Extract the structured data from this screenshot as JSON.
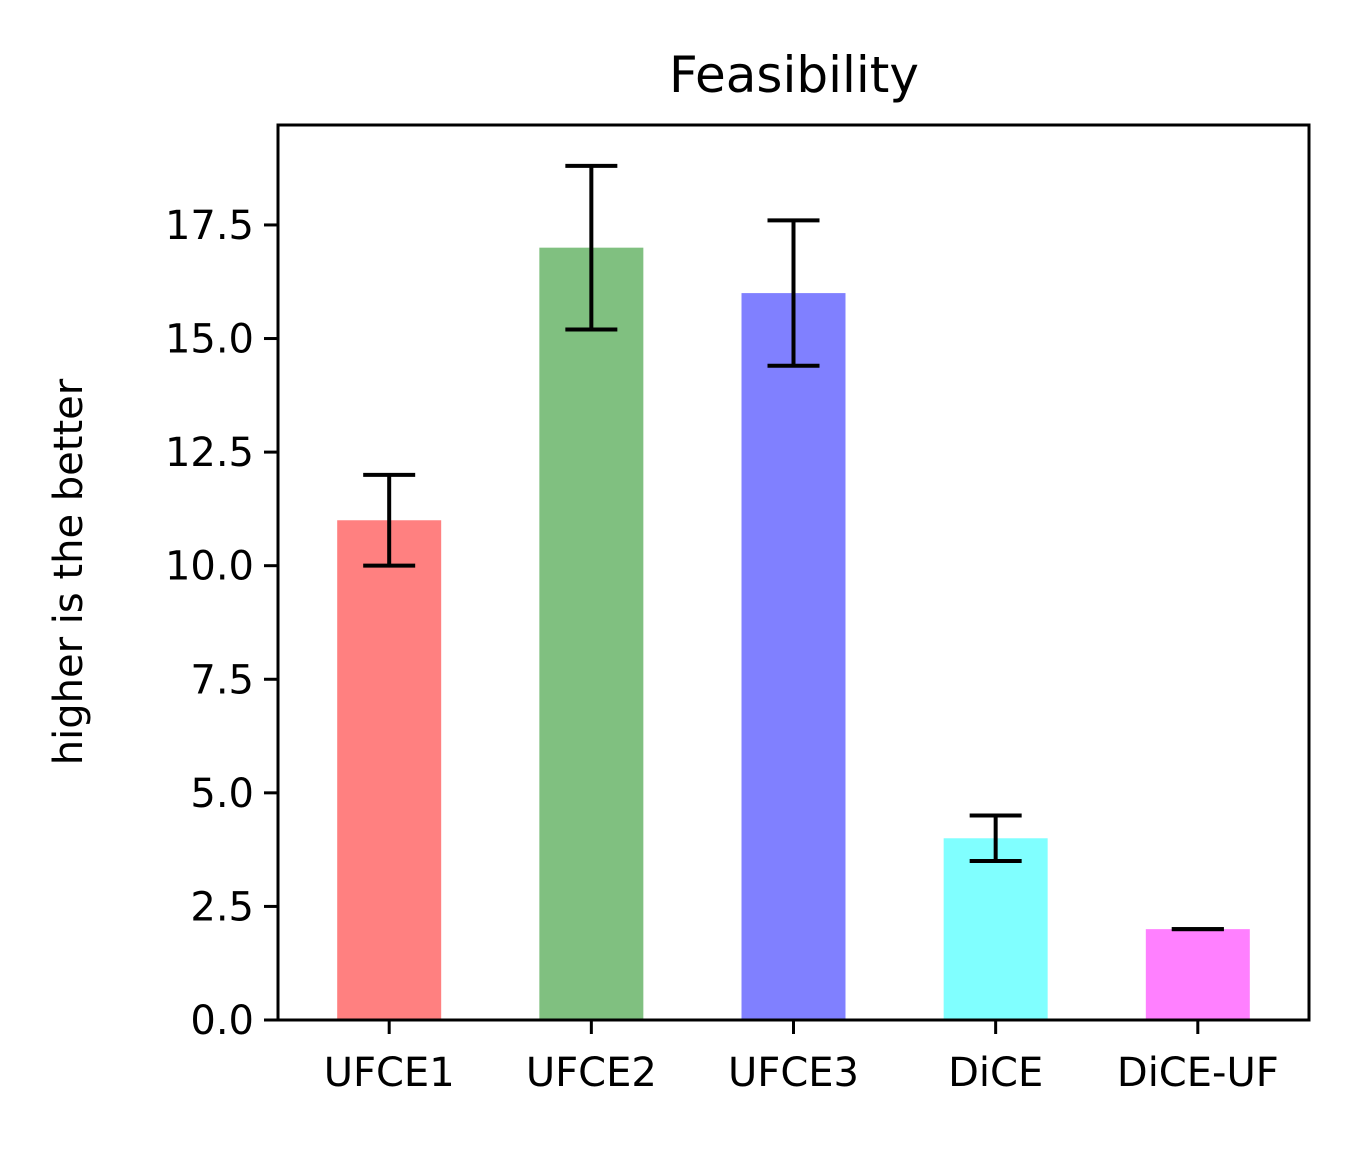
{
  "chart_data": {
    "type": "bar",
    "title": "Feasibility",
    "xlabel": "",
    "ylabel": "higher is the better",
    "categories": [
      "UFCE1",
      "UFCE2",
      "UFCE3",
      "DiCE",
      "DiCE-UF"
    ],
    "values": [
      11.0,
      17.0,
      16.0,
      4.0,
      2.0
    ],
    "error_low": [
      10.0,
      15.2,
      14.4,
      3.5,
      2.0
    ],
    "error_high": [
      12.0,
      18.8,
      17.6,
      4.5,
      2.0
    ],
    "colors": [
      "#ff8080",
      "#80c080",
      "#8080ff",
      "#80ffff",
      "#ff80ff"
    ],
    "yticks": [
      "0.0",
      "2.5",
      "5.0",
      "7.5",
      "10.0",
      "12.5",
      "15.0",
      "17.5"
    ],
    "ylim": [
      0,
      19.7
    ],
    "grid": false,
    "legend": "none"
  }
}
